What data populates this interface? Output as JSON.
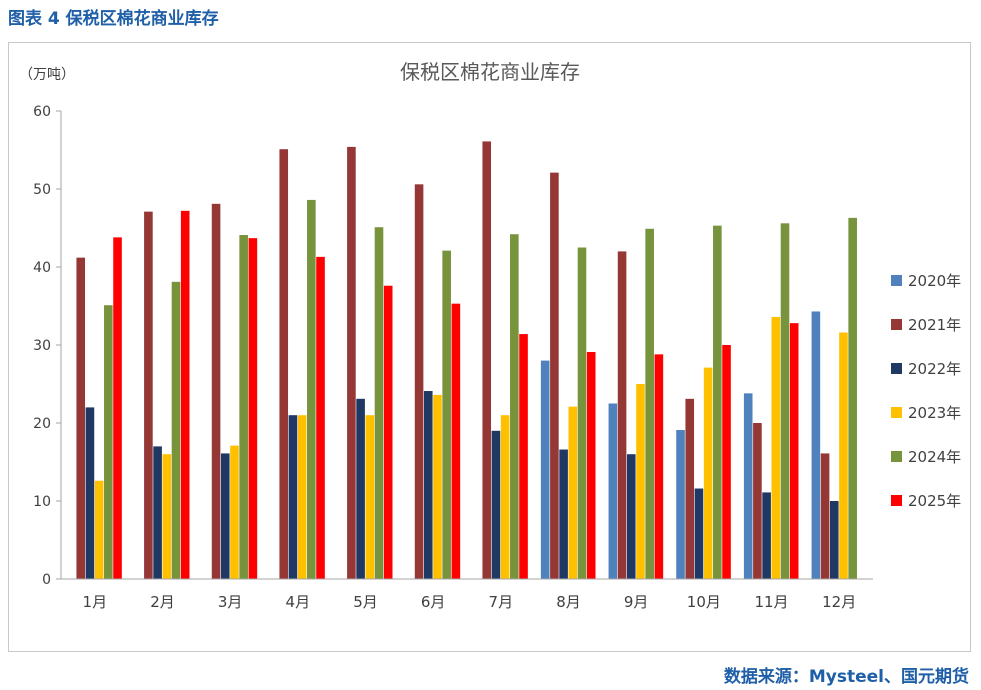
{
  "caption": "图表 4  保税区棉花商业库存",
  "source": "数据来源：Mysteel、国元期货",
  "chart_data": {
    "type": "bar",
    "title": "保税区棉花商业库存",
    "unit_label": "（万吨）",
    "ylim": [
      0,
      60
    ],
    "yticks": [
      "0",
      "10",
      "20",
      "30",
      "40",
      "50",
      "60"
    ],
    "categories": [
      "1月",
      "2月",
      "3月",
      "4月",
      "5月",
      "6月",
      "7月",
      "8月",
      "9月",
      "10月",
      "11月",
      "12月"
    ],
    "legend_position": "right",
    "series": [
      {
        "name": "2020年",
        "color": "#4f81bd",
        "values": [
          null,
          null,
          null,
          null,
          null,
          null,
          null,
          28.0,
          22.5,
          19.1,
          23.8,
          34.3
        ]
      },
      {
        "name": "2021年",
        "color": "#953735",
        "values": [
          41.2,
          47.1,
          48.1,
          55.1,
          55.4,
          50.6,
          56.1,
          52.1,
          42.0,
          23.1,
          20.0,
          16.1
        ]
      },
      {
        "name": "2022年",
        "color": "#1f3864",
        "values": [
          22.0,
          17.0,
          16.1,
          21.0,
          23.1,
          24.1,
          19.0,
          16.6,
          16.0,
          11.6,
          11.1,
          10.0
        ]
      },
      {
        "name": "2023年",
        "color": "#ffc000",
        "values": [
          12.6,
          16.0,
          17.1,
          21.0,
          21.0,
          23.6,
          21.0,
          22.1,
          25.0,
          27.1,
          33.6,
          31.6
        ]
      },
      {
        "name": "2024年",
        "color": "#77933c",
        "values": [
          35.1,
          38.1,
          44.1,
          48.6,
          45.1,
          42.1,
          44.2,
          42.5,
          44.9,
          45.3,
          45.6,
          46.3
        ]
      },
      {
        "name": "2025年",
        "color": "#ff0000",
        "values": [
          43.8,
          47.2,
          43.7,
          41.3,
          37.6,
          35.3,
          31.4,
          29.1,
          28.8,
          30.0,
          32.8,
          null
        ]
      }
    ]
  }
}
